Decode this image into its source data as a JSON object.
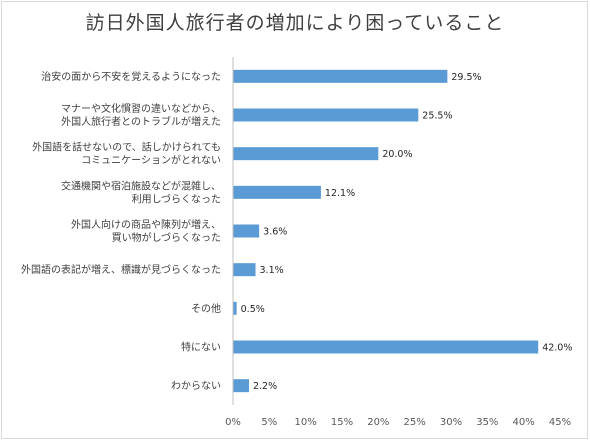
{
  "chart_data": {
    "type": "bar",
    "orientation": "horizontal",
    "title": "訪日外国人旅行者の増加により困っていること",
    "categories": [
      [
        "治安の面から不安を覚えるようになった"
      ],
      [
        "マナーや文化慣習の違いなどから、",
        "外国人旅行者とのトラブルが増えた"
      ],
      [
        "外国語を話せないので、話しかけられても",
        "コミュニケーションがとれない"
      ],
      [
        "交通機関や宿泊施設などが混雑し、",
        "利用しづらくなった"
      ],
      [
        "外国人向けの商品や陳列が増え、",
        "買い物がしづらくなった"
      ],
      [
        "外国語の表記が増え、標識が見づらくなった"
      ],
      [
        "その他"
      ],
      [
        "特にない"
      ],
      [
        "わからない"
      ]
    ],
    "values": [
      29.5,
      25.5,
      20.0,
      12.1,
      3.6,
      3.1,
      0.5,
      42.0,
      2.2
    ],
    "data_labels": [
      "29.5%",
      "25.5%",
      "20.0%",
      "12.1%",
      "3.6%",
      "3.1%",
      "0.5%",
      "42.0%",
      "2.2%"
    ],
    "xlim": [
      0,
      45
    ],
    "x_ticks": [
      "0%",
      "5%",
      "10%",
      "15%",
      "20%",
      "25%",
      "30%",
      "35%",
      "40%",
      "45%"
    ],
    "grid": false,
    "bar_color": "#5b9bd5"
  }
}
